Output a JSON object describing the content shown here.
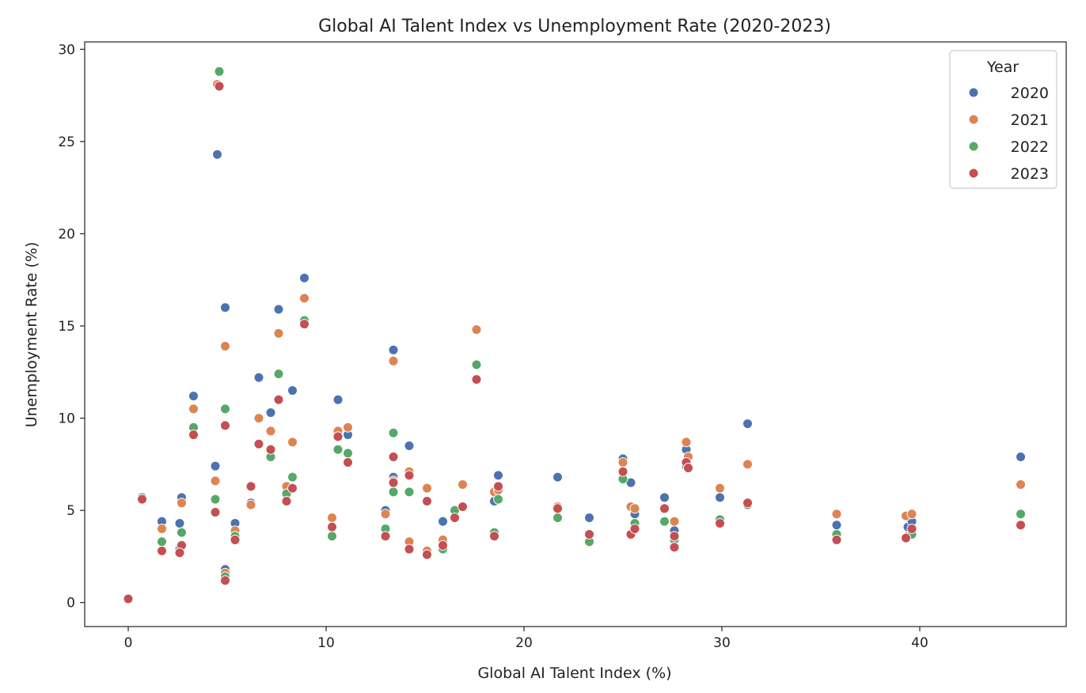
{
  "chart_data": {
    "type": "scatter",
    "title": "Global AI Talent Index vs Unemployment Rate (2020-2023)",
    "xlabel": "Global AI Talent Index (%)",
    "ylabel": "Unemployment Rate (%)",
    "xlim": [
      -2.2,
      47.4
    ],
    "ylim": [
      -1.3,
      30.4
    ],
    "xticks": [
      0,
      10,
      20,
      30,
      40
    ],
    "yticks": [
      0,
      5,
      10,
      15,
      20,
      25,
      30
    ],
    "grid": false,
    "legend": {
      "title": "Year",
      "position": "top-right"
    },
    "series": [
      {
        "name": "2020",
        "color": "#4c72b0",
        "points": [
          [
            0,
            0.2
          ],
          [
            0.7,
            5.7
          ],
          [
            1.7,
            4.4
          ],
          [
            2.7,
            5.7
          ],
          [
            2.6,
            4.3
          ],
          [
            3.3,
            11.2
          ],
          [
            4.4,
            7.4
          ],
          [
            4.5,
            24.3
          ],
          [
            4.9,
            16.0
          ],
          [
            4.9,
            1.8
          ],
          [
            5.4,
            4.3
          ],
          [
            6.2,
            5.4
          ],
          [
            6.6,
            12.2
          ],
          [
            7.2,
            10.3
          ],
          [
            7.6,
            15.9
          ],
          [
            8.0,
            6.2
          ],
          [
            8.3,
            11.5
          ],
          [
            8.9,
            17.6
          ],
          [
            10.3,
            4.1
          ],
          [
            10.6,
            11.0
          ],
          [
            11.1,
            9.1
          ],
          [
            13.0,
            5.0
          ],
          [
            13.4,
            13.7
          ],
          [
            13.4,
            6.8
          ],
          [
            14.2,
            8.5
          ],
          [
            15.9,
            4.4
          ],
          [
            18.5,
            5.5
          ],
          [
            18.7,
            6.9
          ],
          [
            21.7,
            6.8
          ],
          [
            23.3,
            4.6
          ],
          [
            25.0,
            7.8
          ],
          [
            25.4,
            6.5
          ],
          [
            25.6,
            4.8
          ],
          [
            27.1,
            5.7
          ],
          [
            27.6,
            3.9
          ],
          [
            28.2,
            8.3
          ],
          [
            29.9,
            5.7
          ],
          [
            31.3,
            9.7
          ],
          [
            35.8,
            4.2
          ],
          [
            39.4,
            4.1
          ],
          [
            39.6,
            4.4
          ],
          [
            45.1,
            7.9
          ]
        ]
      },
      {
        "name": "2021",
        "color": "#dd8452",
        "points": [
          [
            0,
            0.2
          ],
          [
            0.7,
            5.7
          ],
          [
            1.7,
            4.0
          ],
          [
            2.7,
            5.4
          ],
          [
            2.6,
            3.0
          ],
          [
            3.3,
            10.5
          ],
          [
            4.4,
            6.6
          ],
          [
            4.5,
            28.1
          ],
          [
            4.9,
            13.9
          ],
          [
            4.9,
            1.6
          ],
          [
            5.4,
            3.9
          ],
          [
            6.2,
            5.3
          ],
          [
            6.6,
            10.0
          ],
          [
            7.2,
            9.3
          ],
          [
            7.6,
            14.6
          ],
          [
            8.0,
            6.3
          ],
          [
            8.3,
            8.7
          ],
          [
            8.9,
            16.5
          ],
          [
            10.3,
            4.6
          ],
          [
            10.6,
            9.3
          ],
          [
            11.1,
            9.5
          ],
          [
            13.0,
            4.8
          ],
          [
            13.4,
            13.1
          ],
          [
            13.4,
            6.6
          ],
          [
            14.2,
            7.1
          ],
          [
            14.2,
            3.3
          ],
          [
            15.9,
            3.4
          ],
          [
            15.1,
            6.2
          ],
          [
            15.1,
            2.8
          ],
          [
            16.9,
            6.4
          ],
          [
            17.6,
            14.8
          ],
          [
            18.5,
            6.0
          ],
          [
            18.7,
            6.1
          ],
          [
            21.7,
            5.2
          ],
          [
            25.0,
            7.6
          ],
          [
            25.4,
            5.2
          ],
          [
            25.6,
            5.1
          ],
          [
            27.6,
            4.4
          ],
          [
            28.2,
            8.7
          ],
          [
            28.3,
            7.9
          ],
          [
            29.9,
            6.2
          ],
          [
            31.3,
            7.5
          ],
          [
            35.8,
            4.8
          ],
          [
            39.3,
            4.7
          ],
          [
            39.6,
            4.8
          ],
          [
            45.1,
            6.4
          ]
        ]
      },
      {
        "name": "2022",
        "color": "#55a868",
        "points": [
          [
            0,
            0.2
          ],
          [
            0.7,
            5.7
          ],
          [
            1.7,
            3.3
          ],
          [
            2.7,
            3.8
          ],
          [
            2.6,
            2.9
          ],
          [
            3.3,
            9.5
          ],
          [
            4.4,
            5.6
          ],
          [
            4.6,
            28.8
          ],
          [
            4.9,
            10.5
          ],
          [
            4.9,
            1.4
          ],
          [
            5.4,
            3.6
          ],
          [
            6.2,
            6.3
          ],
          [
            6.6,
            8.6
          ],
          [
            7.2,
            7.9
          ],
          [
            7.6,
            12.4
          ],
          [
            8.0,
            5.9
          ],
          [
            8.3,
            6.8
          ],
          [
            8.9,
            15.3
          ],
          [
            10.3,
            3.6
          ],
          [
            10.6,
            8.3
          ],
          [
            11.1,
            8.1
          ],
          [
            13.0,
            4.0
          ],
          [
            13.4,
            9.2
          ],
          [
            13.4,
            6.0
          ],
          [
            14.2,
            6.0
          ],
          [
            15.9,
            2.9
          ],
          [
            16.5,
            5.0
          ],
          [
            17.6,
            12.9
          ],
          [
            18.5,
            3.8
          ],
          [
            18.7,
            5.6
          ],
          [
            21.7,
            4.6
          ],
          [
            23.3,
            3.3
          ],
          [
            25.0,
            6.7
          ],
          [
            25.6,
            4.3
          ],
          [
            27.1,
            4.4
          ],
          [
            27.6,
            3.4
          ],
          [
            28.2,
            7.4
          ],
          [
            29.9,
            4.5
          ],
          [
            31.3,
            5.3
          ],
          [
            35.8,
            3.7
          ],
          [
            39.4,
            3.6
          ],
          [
            39.6,
            3.7
          ],
          [
            45.1,
            4.8
          ]
        ]
      },
      {
        "name": "2023",
        "color": "#c44e52",
        "points": [
          [
            0,
            0.2
          ],
          [
            0.7,
            5.6
          ],
          [
            1.7,
            2.8
          ],
          [
            2.7,
            3.1
          ],
          [
            2.6,
            2.7
          ],
          [
            3.3,
            9.1
          ],
          [
            4.4,
            4.9
          ],
          [
            4.6,
            28.0
          ],
          [
            4.9,
            9.6
          ],
          [
            4.9,
            1.2
          ],
          [
            5.4,
            3.4
          ],
          [
            6.2,
            6.3
          ],
          [
            6.6,
            8.6
          ],
          [
            7.2,
            8.3
          ],
          [
            7.6,
            11.0
          ],
          [
            8.0,
            5.5
          ],
          [
            8.3,
            6.2
          ],
          [
            8.9,
            15.1
          ],
          [
            10.3,
            4.1
          ],
          [
            10.6,
            9.0
          ],
          [
            11.1,
            7.6
          ],
          [
            13.0,
            3.6
          ],
          [
            13.4,
            7.9
          ],
          [
            13.4,
            6.5
          ],
          [
            14.2,
            2.9
          ],
          [
            14.2,
            6.9
          ],
          [
            15.1,
            2.6
          ],
          [
            15.1,
            5.5
          ],
          [
            15.9,
            3.1
          ],
          [
            16.5,
            4.6
          ],
          [
            16.9,
            5.2
          ],
          [
            17.6,
            12.1
          ],
          [
            18.5,
            3.6
          ],
          [
            18.7,
            6.3
          ],
          [
            21.7,
            5.1
          ],
          [
            23.3,
            3.7
          ],
          [
            25.0,
            7.1
          ],
          [
            25.4,
            3.7
          ],
          [
            25.6,
            4.0
          ],
          [
            27.1,
            5.1
          ],
          [
            27.6,
            3.6
          ],
          [
            27.6,
            3.0
          ],
          [
            28.2,
            7.6
          ],
          [
            28.3,
            7.3
          ],
          [
            29.9,
            4.3
          ],
          [
            31.3,
            5.4
          ],
          [
            35.8,
            3.4
          ],
          [
            39.3,
            3.5
          ],
          [
            39.6,
            4.0
          ],
          [
            45.1,
            4.2
          ]
        ]
      }
    ]
  }
}
